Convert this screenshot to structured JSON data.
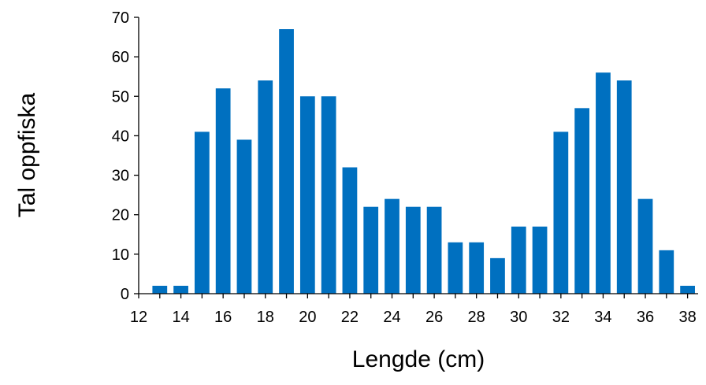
{
  "chart_data": {
    "type": "bar",
    "title": "",
    "xlabel": "Lengde (cm)",
    "ylabel": "Tal oppfiska",
    "x": [
      13,
      14,
      15,
      16,
      17,
      18,
      19,
      20,
      21,
      22,
      23,
      24,
      25,
      26,
      27,
      28,
      29,
      30,
      31,
      32,
      33,
      34,
      35,
      36,
      37,
      38
    ],
    "values": [
      2,
      2,
      41,
      52,
      39,
      54,
      67,
      50,
      50,
      32,
      22,
      24,
      22,
      22,
      13,
      13,
      9,
      17,
      17,
      41,
      47,
      56,
      54,
      24,
      11,
      2
    ],
    "xlim": [
      12,
      38.5
    ],
    "ylim": [
      0,
      70
    ],
    "xticks": [
      12,
      14,
      16,
      18,
      20,
      22,
      24,
      26,
      28,
      30,
      32,
      34,
      36,
      38
    ],
    "yticks": [
      0,
      10,
      20,
      30,
      40,
      50,
      60,
      70
    ],
    "bar_color": "#0070C0",
    "grid": false,
    "legend": "none"
  }
}
